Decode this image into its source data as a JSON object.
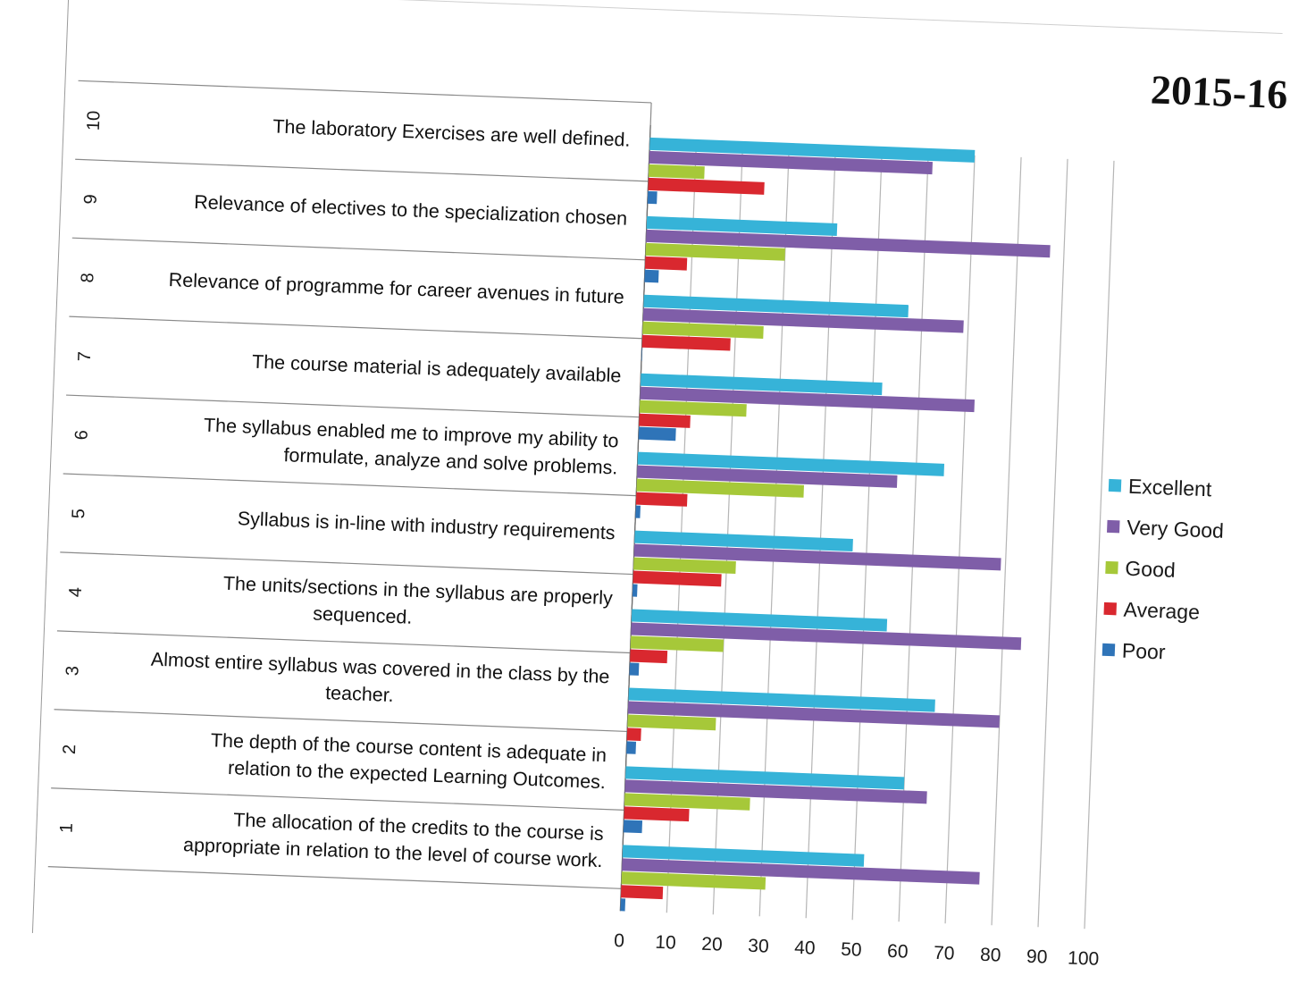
{
  "title": "2015-16",
  "colors": {
    "Excellent": "#36b3d8",
    "Very Good": "#7f5ea8",
    "Good": "#a6c839",
    "Average": "#d9282f",
    "Poor": "#2f74b8"
  },
  "chart_data": {
    "type": "bar",
    "orientation": "horizontal",
    "title": "2015-16",
    "categories": [
      {
        "number": "1",
        "lines": [
          "The allocation of the credits to the course is",
          "appropriate in relation to the level of course work."
        ]
      },
      {
        "number": "2",
        "lines": [
          "The depth of the course content is adequate in",
          "relation to the expected Learning Outcomes."
        ]
      },
      {
        "number": "3",
        "lines": [
          "Almost entire syllabus was covered in the class by the",
          "teacher."
        ]
      },
      {
        "number": "4",
        "lines": [
          "The units/sections in the syllabus are properly",
          "sequenced."
        ]
      },
      {
        "number": "5",
        "lines": [
          "Syllabus is in-line with industry requirements"
        ]
      },
      {
        "number": "6",
        "lines": [
          "The syllabus enabled me to improve my ability to",
          "formulate, analyze and solve problems."
        ]
      },
      {
        "number": "7",
        "lines": [
          "The course material is adequately available"
        ]
      },
      {
        "number": "8",
        "lines": [
          "Relevance of programme for career avenues in future"
        ]
      },
      {
        "number": "9",
        "lines": [
          "Relevance of electives to the specialization chosen"
        ]
      },
      {
        "number": "10",
        "lines": [
          "The laboratory Exercises are well defined."
        ]
      }
    ],
    "series": [
      {
        "name": "Excellent",
        "values": [
          52,
          60,
          66,
          55,
          47,
          66,
          52,
          57,
          41,
          70
        ]
      },
      {
        "name": "Very Good",
        "values": [
          77,
          65,
          80,
          84,
          79,
          56,
          72,
          69,
          87,
          61
        ]
      },
      {
        "name": "Good",
        "values": [
          31,
          27,
          19,
          20,
          22,
          36,
          23,
          26,
          30,
          12
        ]
      },
      {
        "name": "Average",
        "values": [
          9,
          14,
          3,
          8,
          19,
          11,
          11,
          19,
          9,
          25
        ]
      },
      {
        "name": "Poor",
        "values": [
          1,
          4,
          2,
          2,
          1,
          1,
          8,
          0,
          3,
          2
        ]
      }
    ],
    "xlim": [
      0,
      100
    ],
    "xticks": [
      0,
      10,
      20,
      30,
      40,
      50,
      60,
      70,
      80,
      90,
      100
    ],
    "grid": true,
    "legend_position": "right"
  }
}
